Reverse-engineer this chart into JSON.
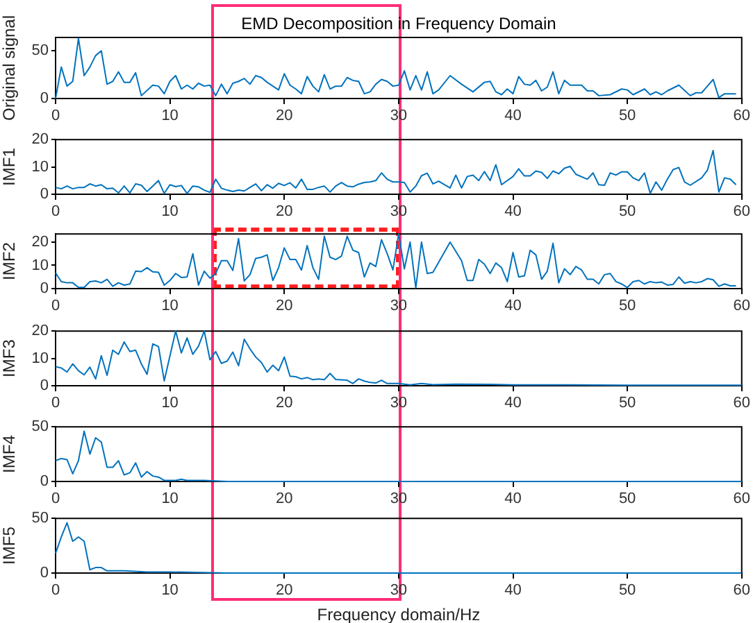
{
  "chart_data": [
    {
      "type": "line",
      "title": "EMD Decomposition in Frequency Domain",
      "ylabel": "Original signal",
      "color": "#0072bd",
      "xlim": [
        0,
        60
      ],
      "xticks": [
        0,
        10,
        20,
        30,
        40,
        50,
        60
      ],
      "ylim": [
        0,
        64
      ],
      "yticks": [
        0,
        50
      ],
      "x": [
        0,
        0.5,
        1,
        1.5,
        2,
        2.5,
        3,
        3.5,
        4,
        4.5,
        5,
        5.5,
        6,
        6.5,
        7,
        7.5,
        8.5,
        9,
        9.5,
        10,
        10.5,
        11,
        11.5,
        12,
        12.5,
        13,
        13.5,
        14,
        14.5,
        15,
        15.5,
        16,
        16.5,
        17,
        17.5,
        18,
        18.5,
        19,
        19.5,
        20,
        20.5,
        21,
        21.5,
        22,
        22.5,
        23,
        23.5,
        24,
        24.5,
        25,
        25.5,
        26,
        26.5,
        27,
        27.5,
        28,
        28.5,
        29,
        29.5,
        30,
        30.5,
        31,
        31.5,
        32,
        32.5,
        33,
        33.5,
        34.5,
        35.5,
        36.5,
        37.5,
        38,
        38.5,
        39,
        39.5,
        40,
        40.5,
        41,
        41.5,
        42,
        42.5,
        43,
        43.5,
        44,
        44.5,
        45,
        46,
        46.5,
        47,
        47.5,
        48.5,
        49.5,
        50,
        50.5,
        51.5,
        52,
        52.5,
        53,
        53.5,
        54.5,
        55.5,
        56,
        56.5,
        57,
        57.5,
        58,
        58.5,
        59.5
      ],
      "values": [
        0,
        33,
        13,
        18,
        63,
        24,
        33,
        45,
        50,
        15,
        18,
        28,
        17,
        17,
        27,
        3,
        14,
        13,
        5,
        18,
        24,
        10,
        14,
        10,
        16,
        13,
        14,
        3,
        15,
        5,
        16,
        18,
        21,
        15,
        24,
        22,
        17,
        13,
        9,
        26,
        14,
        10,
        5,
        23,
        13,
        7,
        25,
        10,
        13,
        13,
        22,
        19,
        18,
        5,
        7,
        15,
        20,
        18,
        13,
        14,
        29,
        9,
        24,
        9,
        28,
        5,
        9,
        24,
        15,
        7,
        17,
        18,
        7,
        4,
        10,
        5,
        23,
        15,
        14,
        19,
        8,
        12,
        28,
        5,
        19,
        14,
        14,
        8,
        8,
        3,
        4,
        10,
        9,
        4,
        10,
        4,
        7,
        4,
        8,
        14,
        3,
        6,
        6,
        13,
        20,
        1,
        5,
        5
      ]
    },
    {
      "type": "line",
      "ylabel": "IMF1",
      "color": "#0072bd",
      "xlim": [
        0,
        60
      ],
      "xticks": [
        0,
        10,
        20,
        30,
        40,
        50,
        60
      ],
      "ylim": [
        0,
        20
      ],
      "yticks": [
        0,
        10,
        20
      ],
      "x": [
        0,
        0.5,
        1,
        1.5,
        2,
        2.5,
        3,
        3.5,
        4,
        4.5,
        5,
        5.5,
        6,
        6.5,
        7,
        7.5,
        8,
        8.5,
        9,
        9.5,
        10,
        10.5,
        11,
        11.5,
        12,
        12.5,
        13,
        13.5,
        14,
        14.5,
        15,
        15.5,
        16,
        16.5,
        17,
        17.5,
        18,
        18.5,
        19,
        19.5,
        20,
        20.5,
        21,
        21.5,
        22,
        22.5,
        23,
        23.5,
        24,
        24.5,
        25,
        25.5,
        26,
        26.5,
        27,
        27.5,
        28,
        28.5,
        29,
        29.5,
        30,
        30.5,
        31,
        31.5,
        32,
        32.5,
        33,
        33.5,
        34,
        34.5,
        35,
        35.5,
        36,
        36.5,
        37,
        37.5,
        38,
        38.5,
        39,
        40,
        40.5,
        41,
        41.5,
        42,
        42.5,
        43,
        43.5,
        44,
        44.5,
        45,
        45.5,
        46.5,
        47,
        47.5,
        48,
        48.5,
        49,
        49.5,
        50,
        50.5,
        51,
        51.5,
        52,
        52.5,
        53,
        53.5,
        54,
        54.5,
        55,
        55.5,
        56.5,
        57,
        57.5,
        58,
        58.5,
        59,
        59.5
      ],
      "values": [
        2.5,
        2,
        3,
        2,
        2.5,
        2.5,
        3.8,
        3,
        3.5,
        2,
        2.2,
        0.5,
        3,
        0.5,
        3.8,
        3.3,
        1,
        3,
        5,
        0.3,
        3.5,
        2.8,
        3.2,
        0.3,
        3,
        2.7,
        1.5,
        0.7,
        5.5,
        2.2,
        1.5,
        1,
        1.5,
        1.2,
        2.5,
        3.8,
        1.3,
        3.5,
        2.2,
        4,
        3.2,
        4.2,
        2.3,
        5.5,
        1.8,
        1.8,
        2.5,
        3,
        0.8,
        3,
        4.3,
        3,
        2.7,
        3.7,
        4.3,
        4.5,
        5,
        7.8,
        5.5,
        4.5,
        4.5,
        4.3,
        0.8,
        3,
        6.8,
        7.7,
        3.8,
        4.8,
        3.5,
        2.3,
        7,
        2.3,
        6.5,
        7,
        5,
        8.3,
        5,
        10.8,
        3.5,
        6.5,
        9.3,
        6.7,
        6.7,
        8.5,
        8,
        5.8,
        8.5,
        7.5,
        9.5,
        10.2,
        7.3,
        5.5,
        7.8,
        3.5,
        3.3,
        7.8,
        7,
        8.2,
        8.2,
        6,
        5,
        7.8,
        0.3,
        4.5,
        1.5,
        5.5,
        9,
        9.8,
        4.5,
        3.3,
        6,
        8.8,
        16,
        0.8,
        6,
        5.5,
        3.5
      ]
    },
    {
      "type": "line",
      "ylabel": "IMF2",
      "color": "#0072bd",
      "xlim": [
        0,
        60
      ],
      "xticks": [
        0,
        10,
        20,
        30,
        40,
        50,
        60
      ],
      "ylim": [
        0,
        23.5
      ],
      "yticks": [
        0,
        10,
        20
      ],
      "x": [
        0,
        0.5,
        1,
        1.5,
        2,
        2.5,
        3,
        3.5,
        4,
        4.5,
        5,
        5.5,
        6,
        6.5,
        7,
        7.5,
        8,
        8.5,
        9,
        9.5,
        10,
        10.5,
        11,
        11.5,
        12,
        12.5,
        13,
        13.5,
        14,
        14.5,
        15,
        15.5,
        16,
        16.5,
        17,
        17.5,
        18,
        18.5,
        19,
        19.5,
        20,
        20.5,
        21,
        21.5,
        22,
        22.5,
        23,
        23.5,
        24,
        24.5,
        25,
        25.5,
        26,
        26.5,
        27,
        27.5,
        28,
        28.5,
        29,
        29.5,
        30,
        30.5,
        31,
        31.5,
        32,
        32.5,
        33,
        34.5,
        35.5,
        36,
        36.5,
        37,
        37.5,
        38,
        38.5,
        39,
        39.5,
        40,
        40.5,
        41,
        41.5,
        42,
        42.5,
        43,
        43.5,
        44,
        44.5,
        45,
        45.5,
        46,
        46.5,
        47,
        47.5,
        48,
        48.5,
        49,
        49.5,
        50,
        50.5,
        51,
        51.5,
        52,
        52.5,
        53,
        53.5,
        54,
        54.5,
        55,
        55.5,
        56,
        56.5,
        57,
        57.5,
        58,
        58.5,
        59,
        59.5
      ],
      "values": [
        6.8,
        3,
        2.5,
        2.5,
        0.5,
        0.5,
        3,
        3.3,
        2.5,
        4,
        1,
        2.5,
        1.5,
        2,
        7.5,
        7.3,
        9,
        7.2,
        7,
        1.5,
        3.5,
        6.5,
        4.8,
        5,
        15,
        1.5,
        7.5,
        4.5,
        6.5,
        12,
        12,
        7.8,
        21.5,
        3.3,
        6,
        13,
        13.5,
        14.5,
        3.5,
        9,
        17.5,
        12.5,
        12.5,
        8,
        18.5,
        9,
        4,
        22.5,
        13.5,
        12.5,
        14,
        22.5,
        16.5,
        15.5,
        5,
        11,
        9.5,
        21,
        15,
        8,
        23.5,
        8.5,
        20,
        0.3,
        20,
        6.5,
        7,
        20,
        12,
        3.5,
        3.5,
        12.5,
        10.5,
        6.5,
        11,
        9,
        3,
        15.5,
        5,
        5.5,
        16.5,
        14.5,
        4,
        7.5,
        19.5,
        2.5,
        8.5,
        6,
        9.5,
        8,
        4,
        4,
        2,
        6,
        6.5,
        3,
        2,
        0.5,
        3,
        3.5,
        2,
        3,
        2.5,
        2.8,
        1.5,
        1.8,
        5,
        2.3,
        3,
        2.5,
        3,
        4.3,
        3.8,
        1,
        2,
        1.2,
        1.2
      ]
    },
    {
      "type": "line",
      "ylabel": "IMF3",
      "color": "#0072bd",
      "xlim": [
        0,
        60
      ],
      "xticks": [
        0,
        10,
        20,
        30,
        40,
        50,
        60
      ],
      "ylim": [
        0,
        20
      ],
      "yticks": [
        0,
        10,
        20
      ],
      "x": [
        0,
        0.5,
        1,
        1.5,
        2,
        2.5,
        3,
        3.5,
        4,
        4.5,
        5,
        5.5,
        6,
        6.5,
        7,
        7.5,
        8,
        8.5,
        9,
        9.5,
        10.5,
        11,
        11.5,
        12,
        12.5,
        13,
        13.5,
        14,
        14.5,
        15,
        15.5,
        16,
        16.5,
        17,
        17.5,
        18,
        18.5,
        19,
        19.5,
        20,
        20.5,
        21,
        21.5,
        22,
        22.5,
        23,
        23.5,
        24,
        24.5,
        25.5,
        26,
        26.5,
        27,
        27.5,
        28,
        28.5,
        29,
        30,
        31,
        32,
        33,
        35,
        38,
        40,
        45,
        50,
        55,
        60
      ],
      "values": [
        7,
        6.5,
        5,
        8,
        5.5,
        4,
        6.8,
        2.5,
        11,
        3.8,
        13,
        11.5,
        16,
        12.5,
        13,
        8,
        4.2,
        15.3,
        14.3,
        1.8,
        20,
        12,
        17.5,
        11.5,
        14.5,
        20,
        9.5,
        12.5,
        8.2,
        9,
        12.3,
        7.3,
        17,
        13.5,
        10.5,
        8.5,
        5,
        7.5,
        5.5,
        10.5,
        3.5,
        3.3,
        2.5,
        3,
        2.2,
        2.5,
        2.2,
        4.5,
        2.3,
        2,
        0.8,
        2.5,
        1.7,
        1.2,
        1,
        2,
        0.8,
        0.8,
        0.3,
        0.8,
        0.4,
        0.6,
        0.5,
        0.3,
        0.3,
        0.2,
        0.2,
        0.2
      ]
    },
    {
      "type": "line",
      "ylabel": "IMF4",
      "color": "#0072bd",
      "xlim": [
        0,
        60
      ],
      "xticks": [
        0,
        10,
        20,
        30,
        40,
        50,
        60
      ],
      "ylim": [
        0,
        50
      ],
      "yticks": [
        0,
        50
      ],
      "x": [
        0,
        0.5,
        1,
        1.5,
        2,
        2.5,
        3,
        3.5,
        4,
        4.5,
        5,
        5.5,
        6,
        6.5,
        7,
        7.5,
        8,
        8.5,
        9,
        9.5,
        10,
        10.5,
        11,
        11.5,
        13,
        15,
        20,
        30,
        60
      ],
      "values": [
        19,
        21,
        20,
        7,
        19,
        46,
        25,
        40,
        36,
        13,
        13,
        19,
        6,
        8,
        17,
        4,
        9,
        5,
        4,
        1,
        1,
        1,
        2,
        1,
        1,
        0,
        0,
        0,
        0
      ]
    },
    {
      "type": "line",
      "ylabel": "IMF5",
      "xlabel": "Frequency domain/Hz",
      "color": "#0072bd",
      "xlim": [
        0,
        60
      ],
      "xticks": [
        0,
        10,
        20,
        30,
        40,
        50,
        60
      ],
      "ylim": [
        0,
        50
      ],
      "yticks": [
        0,
        50
      ],
      "x": [
        0,
        0.5,
        1,
        1.5,
        2,
        2.5,
        3,
        3.5,
        4,
        4.5,
        5,
        6,
        8,
        10,
        15,
        20,
        30,
        60
      ],
      "values": [
        18,
        33,
        46,
        29,
        33,
        29,
        3,
        5,
        5,
        2,
        2,
        2,
        1,
        1,
        0,
        0,
        0,
        0
      ]
    }
  ]
}
